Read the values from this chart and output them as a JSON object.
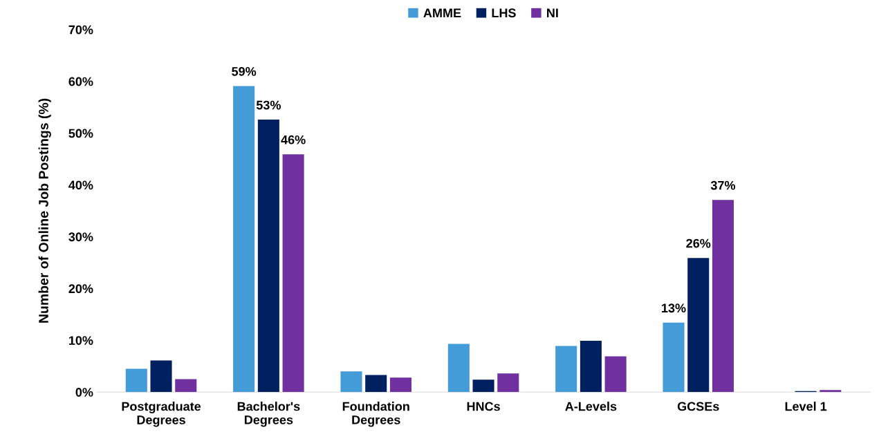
{
  "chart_data": {
    "type": "bar",
    "ylabel": "Number of Online Job Postings (%)",
    "categories": [
      "Postgraduate\nDegrees",
      "Bachelor's\nDegrees",
      "Foundation\nDegrees",
      "HNCs",
      "A-Levels",
      "GCSEs",
      "Level 1"
    ],
    "series": [
      {
        "name": "AMME",
        "color": "#439cd8",
        "values": [
          4.5,
          59.1,
          4.0,
          9.3,
          8.9,
          13.4,
          0
        ],
        "value_labels": [
          null,
          "59%",
          null,
          null,
          null,
          "13%",
          null
        ]
      },
      {
        "name": "LHS",
        "color": "#002060",
        "values": [
          6.1,
          52.6,
          3.3,
          2.4,
          9.9,
          25.9,
          0.2
        ],
        "value_labels": [
          null,
          "53%",
          null,
          null,
          null,
          "26%",
          null
        ]
      },
      {
        "name": "NI",
        "color": "#7030a0",
        "values": [
          2.5,
          45.9,
          2.8,
          3.6,
          6.9,
          37.1,
          0.4
        ],
        "value_labels": [
          null,
          "46%",
          null,
          null,
          null,
          "37%",
          null
        ]
      }
    ],
    "ylim": [
      0,
      70
    ],
    "yticks": [
      {
        "value": 0,
        "label": "0%"
      },
      {
        "value": 10,
        "label": "10%"
      },
      {
        "value": 20,
        "label": "20%"
      },
      {
        "value": 30,
        "label": "30%"
      },
      {
        "value": 40,
        "label": "40%"
      },
      {
        "value": 50,
        "label": "50%"
      },
      {
        "value": 60,
        "label": "60%"
      },
      {
        "value": 70,
        "label": "70%"
      }
    ],
    "legend": "top",
    "grid": false
  }
}
